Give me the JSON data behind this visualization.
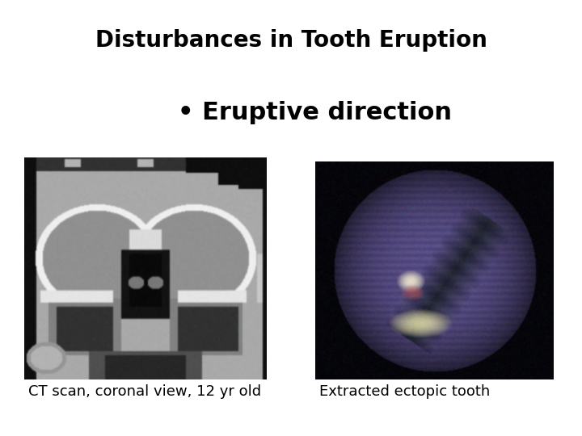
{
  "title": "Disturbances in Tooth Eruption",
  "bullet": "• Eruptive direction",
  "caption_left": "CT scan, coronal view, 12 yr old",
  "caption_right": "Extracted ectopic tooth",
  "bg_color": "#ffffff",
  "title_fontsize": 20,
  "bullet_fontsize": 22,
  "caption_fontsize": 13,
  "title_color": "#000000",
  "bullet_color": "#000000",
  "caption_color": "#000000"
}
